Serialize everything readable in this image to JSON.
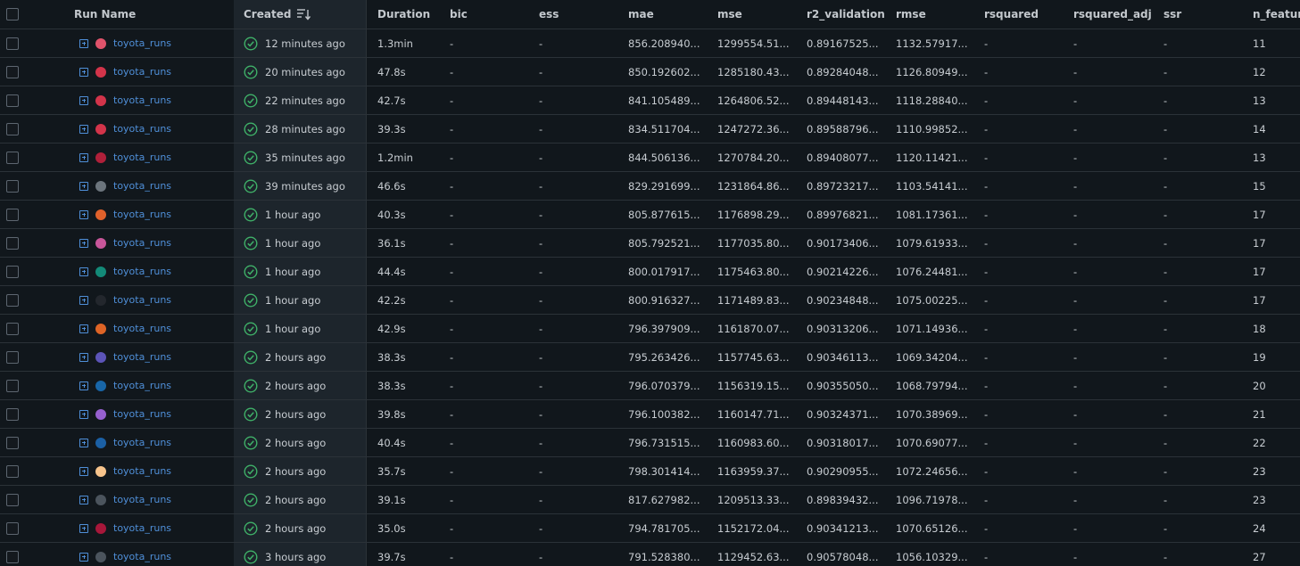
{
  "columns": {
    "run_name": "Run Name",
    "created": "Created",
    "duration": "Duration",
    "bic": "bic",
    "ess": "ess",
    "mae": "mae",
    "mse": "mse",
    "r2_validation": "r2_validation",
    "rmse": "rmse",
    "rsquared": "rsquared",
    "rsquared_adj": "rsquared_adj",
    "ssr": "ssr",
    "n_features": "n_feature"
  },
  "rows": [
    {
      "run_name": "toyota_runs",
      "dot_color": "#e0536b",
      "created": "12 minutes ago",
      "duration": "1.3min",
      "bic": "-",
      "ess": "-",
      "mae": "856.208940...",
      "mse": "1299554.51...",
      "r2": "0.89167525...",
      "rmse": "1132.57917...",
      "rsquared": "-",
      "rsquared_adj": "-",
      "ssr": "-",
      "n_features": "11"
    },
    {
      "run_name": "toyota_runs",
      "dot_color": "#d3344a",
      "created": "20 minutes ago",
      "duration": "47.8s",
      "bic": "-",
      "ess": "-",
      "mae": "850.192602...",
      "mse": "1285180.43...",
      "r2": "0.89284048...",
      "rmse": "1126.80949...",
      "rsquared": "-",
      "rsquared_adj": "-",
      "ssr": "-",
      "n_features": "12"
    },
    {
      "run_name": "toyota_runs",
      "dot_color": "#d3344a",
      "created": "22 minutes ago",
      "duration": "42.7s",
      "bic": "-",
      "ess": "-",
      "mae": "841.105489...",
      "mse": "1264806.52...",
      "r2": "0.89448143...",
      "rmse": "1118.28840...",
      "rsquared": "-",
      "rsquared_adj": "-",
      "ssr": "-",
      "n_features": "13"
    },
    {
      "run_name": "toyota_runs",
      "dot_color": "#d3344a",
      "created": "28 minutes ago",
      "duration": "39.3s",
      "bic": "-",
      "ess": "-",
      "mae": "834.511704...",
      "mse": "1247272.36...",
      "r2": "0.89588796...",
      "rmse": "1110.99852...",
      "rsquared": "-",
      "rsquared_adj": "-",
      "ssr": "-",
      "n_features": "14"
    },
    {
      "run_name": "toyota_runs",
      "dot_color": "#b0203a",
      "created": "35 minutes ago",
      "duration": "1.2min",
      "bic": "-",
      "ess": "-",
      "mae": "844.506136...",
      "mse": "1270784.20...",
      "r2": "0.89408077...",
      "rmse": "1120.11421...",
      "rsquared": "-",
      "rsquared_adj": "-",
      "ssr": "-",
      "n_features": "13"
    },
    {
      "run_name": "toyota_runs",
      "dot_color": "#6c757d",
      "created": "39 minutes ago",
      "duration": "46.6s",
      "bic": "-",
      "ess": "-",
      "mae": "829.291699...",
      "mse": "1231864.86...",
      "r2": "0.89723217...",
      "rmse": "1103.54141...",
      "rsquared": "-",
      "rsquared_adj": "-",
      "ssr": "-",
      "n_features": "15"
    },
    {
      "run_name": "toyota_runs",
      "dot_color": "#e0612b",
      "created": "1 hour ago",
      "duration": "40.3s",
      "bic": "-",
      "ess": "-",
      "mae": "805.877615...",
      "mse": "1176898.29...",
      "r2": "0.89976821...",
      "rmse": "1081.17361...",
      "rsquared": "-",
      "rsquared_adj": "-",
      "ssr": "-",
      "n_features": "17"
    },
    {
      "run_name": "toyota_runs",
      "dot_color": "#c8569a",
      "created": "1 hour ago",
      "duration": "36.1s",
      "bic": "-",
      "ess": "-",
      "mae": "805.792521...",
      "mse": "1177035.80...",
      "r2": "0.90173406...",
      "rmse": "1079.61933...",
      "rsquared": "-",
      "rsquared_adj": "-",
      "ssr": "-",
      "n_features": "17"
    },
    {
      "run_name": "toyota_runs",
      "dot_color": "#138a78",
      "created": "1 hour ago",
      "duration": "44.4s",
      "bic": "-",
      "ess": "-",
      "mae": "800.017917...",
      "mse": "1175463.80...",
      "r2": "0.90214226...",
      "rmse": "1076.24481...",
      "rsquared": "-",
      "rsquared_adj": "-",
      "ssr": "-",
      "n_features": "17"
    },
    {
      "run_name": "toyota_runs",
      "dot_color": "#23272d",
      "created": "1 hour ago",
      "duration": "42.2s",
      "bic": "-",
      "ess": "-",
      "mae": "800.916327...",
      "mse": "1171489.83...",
      "r2": "0.90234848...",
      "rmse": "1075.00225...",
      "rsquared": "-",
      "rsquared_adj": "-",
      "ssr": "-",
      "n_features": "17"
    },
    {
      "run_name": "toyota_runs",
      "dot_color": "#de6426",
      "created": "1 hour ago",
      "duration": "42.9s",
      "bic": "-",
      "ess": "-",
      "mae": "796.397909...",
      "mse": "1161870.07...",
      "r2": "0.90313206...",
      "rmse": "1071.14936...",
      "rsquared": "-",
      "rsquared_adj": "-",
      "ssr": "-",
      "n_features": "18"
    },
    {
      "run_name": "toyota_runs",
      "dot_color": "#5c54b8",
      "created": "2 hours ago",
      "duration": "38.3s",
      "bic": "-",
      "ess": "-",
      "mae": "795.263426...",
      "mse": "1157745.63...",
      "r2": "0.90346113...",
      "rmse": "1069.34204...",
      "rsquared": "-",
      "rsquared_adj": "-",
      "ssr": "-",
      "n_features": "19"
    },
    {
      "run_name": "toyota_runs",
      "dot_color": "#1866a8",
      "created": "2 hours ago",
      "duration": "38.3s",
      "bic": "-",
      "ess": "-",
      "mae": "796.070379...",
      "mse": "1156319.15...",
      "r2": "0.90355050...",
      "rmse": "1068.79794...",
      "rsquared": "-",
      "rsquared_adj": "-",
      "ssr": "-",
      "n_features": "20"
    },
    {
      "run_name": "toyota_runs",
      "dot_color": "#9660cf",
      "created": "2 hours ago",
      "duration": "39.8s",
      "bic": "-",
      "ess": "-",
      "mae": "796.100382...",
      "mse": "1160147.71...",
      "r2": "0.90324371...",
      "rmse": "1070.38969...",
      "rsquared": "-",
      "rsquared_adj": "-",
      "ssr": "-",
      "n_features": "21"
    },
    {
      "run_name": "toyota_runs",
      "dot_color": "#1b60a5",
      "created": "2 hours ago",
      "duration": "40.4s",
      "bic": "-",
      "ess": "-",
      "mae": "796.731515...",
      "mse": "1160983.60...",
      "r2": "0.90318017...",
      "rmse": "1070.69077...",
      "rsquared": "-",
      "rsquared_adj": "-",
      "ssr": "-",
      "n_features": "22"
    },
    {
      "run_name": "toyota_runs",
      "dot_color": "#f7c48c",
      "created": "2 hours ago",
      "duration": "35.7s",
      "bic": "-",
      "ess": "-",
      "mae": "798.301414...",
      "mse": "1163959.37...",
      "r2": "0.90290955...",
      "rmse": "1072.24656...",
      "rsquared": "-",
      "rsquared_adj": "-",
      "ssr": "-",
      "n_features": "23"
    },
    {
      "run_name": "toyota_runs",
      "dot_color": "#4b545d",
      "created": "2 hours ago",
      "duration": "39.1s",
      "bic": "-",
      "ess": "-",
      "mae": "817.627982...",
      "mse": "1209513.33...",
      "r2": "0.89839432...",
      "rmse": "1096.71978...",
      "rsquared": "-",
      "rsquared_adj": "-",
      "ssr": "-",
      "n_features": "23"
    },
    {
      "run_name": "toyota_runs",
      "dot_color": "#a7173a",
      "created": "2 hours ago",
      "duration": "35.0s",
      "bic": "-",
      "ess": "-",
      "mae": "794.781705...",
      "mse": "1152172.04...",
      "r2": "0.90341213...",
      "rmse": "1070.65126...",
      "rsquared": "-",
      "rsquared_adj": "-",
      "ssr": "-",
      "n_features": "24"
    },
    {
      "run_name": "toyota_runs",
      "dot_color": "#4b545d",
      "created": "3 hours ago",
      "duration": "39.7s",
      "bic": "-",
      "ess": "-",
      "mae": "791.528380...",
      "mse": "1129452.63...",
      "r2": "0.90578048...",
      "rmse": "1056.10329...",
      "rsquared": "-",
      "rsquared_adj": "-",
      "ssr": "-",
      "n_features": "27"
    }
  ],
  "icons": {
    "expand": "plus-square-icon",
    "status": "check-circle-icon",
    "sort": "sort-descending-icon"
  },
  "colors": {
    "background": "#11171c",
    "created_column_bg": "#1d252c",
    "row_border": "#2b3238",
    "link": "#4f8fd8",
    "success": "#3fb068"
  }
}
